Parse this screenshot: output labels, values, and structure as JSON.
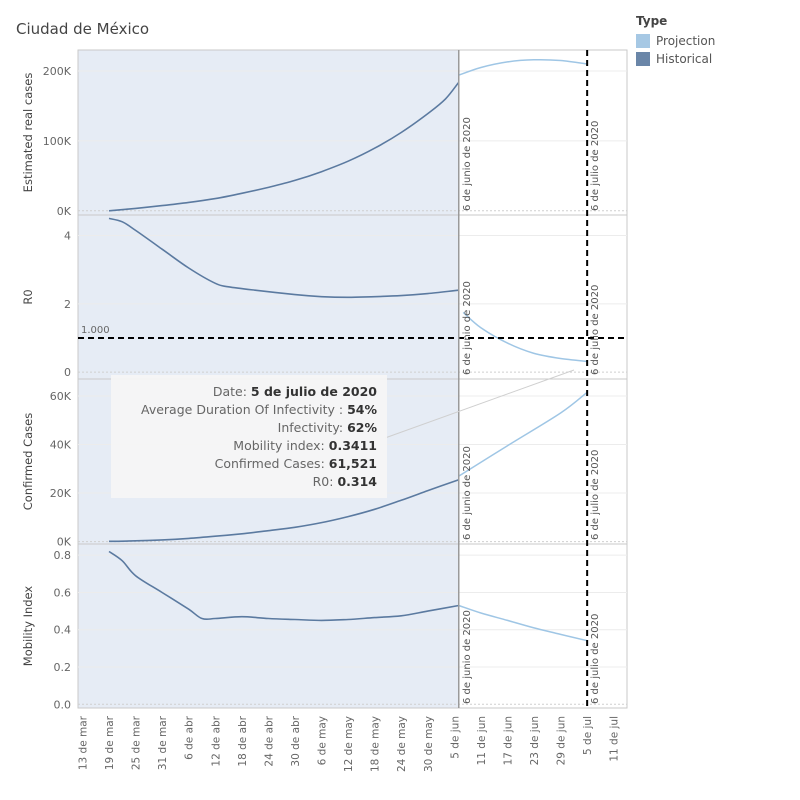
{
  "title": "Ciudad de México",
  "legend": {
    "title": "Type",
    "items": [
      {
        "label": "Projection",
        "color": "#a6c8e4"
      },
      {
        "label": "Historical",
        "color": "#6a86a8"
      }
    ]
  },
  "colors": {
    "historical_line": "#5b7aa0",
    "projection_line": "#9fc6e5",
    "historical_band": "#e6ecf5",
    "ref_line": "#000000",
    "border": "#c9c9c9"
  },
  "reference_lines": {
    "current_date": "2020-06-06",
    "current_label": "6 de junio de 2020",
    "selected_date": "2020-07-05",
    "selected_label": "6 de julio de 2020",
    "r0_threshold": 1.0,
    "r0_threshold_label": "1.000"
  },
  "x_axis": {
    "domain": [
      "2020-03-12",
      "2020-07-14"
    ],
    "ticks": [
      {
        "date": "2020-03-13",
        "label": "13 de mar"
      },
      {
        "date": "2020-03-19",
        "label": "19 de mar"
      },
      {
        "date": "2020-03-25",
        "label": "25 de mar"
      },
      {
        "date": "2020-03-31",
        "label": "31 de mar"
      },
      {
        "date": "2020-04-06",
        "label": "6 de abr"
      },
      {
        "date": "2020-04-12",
        "label": "12 de abr"
      },
      {
        "date": "2020-04-18",
        "label": "18 de abr"
      },
      {
        "date": "2020-04-24",
        "label": "24 de abr"
      },
      {
        "date": "2020-04-30",
        "label": "30 de abr"
      },
      {
        "date": "2020-05-06",
        "label": "6 de may"
      },
      {
        "date": "2020-05-12",
        "label": "12 de may"
      },
      {
        "date": "2020-05-18",
        "label": "18 de may"
      },
      {
        "date": "2020-05-24",
        "label": "24 de may"
      },
      {
        "date": "2020-05-30",
        "label": "30 de may"
      },
      {
        "date": "2020-06-05",
        "label": "5 de jun"
      },
      {
        "date": "2020-06-11",
        "label": "11 de jun"
      },
      {
        "date": "2020-06-17",
        "label": "17 de jun"
      },
      {
        "date": "2020-06-23",
        "label": "23 de jun"
      },
      {
        "date": "2020-06-29",
        "label": "29 de jun"
      },
      {
        "date": "2020-07-05",
        "label": "5 de jul"
      },
      {
        "date": "2020-07-11",
        "label": "11 de jul"
      }
    ]
  },
  "tooltip": {
    "rows": [
      {
        "label": "Date: ",
        "value": "5 de julio de 2020"
      },
      {
        "label": "Average Duration Of Infectivity : ",
        "value": "54%"
      },
      {
        "label": "Infectivity: ",
        "value": "62%"
      },
      {
        "label": "Mobility index: ",
        "value": "0.3411"
      },
      {
        "label": "Confirmed Cases: ",
        "value": "61,521"
      },
      {
        "label": "R0: ",
        "value": "0.314"
      }
    ]
  },
  "chart_data": [
    {
      "type": "line",
      "ylabel": "Estimated real cases",
      "ylim": [
        -6000,
        230000
      ],
      "yticks": [
        {
          "value": 0,
          "label": "0K"
        },
        {
          "value": 100000,
          "label": "100K"
        },
        {
          "value": 200000,
          "label": "200K"
        }
      ],
      "series": [
        {
          "name": "Historical",
          "x": [
            "2020-03-19",
            "2020-03-25",
            "2020-03-31",
            "2020-04-06",
            "2020-04-12",
            "2020-04-18",
            "2020-04-24",
            "2020-04-30",
            "2020-05-06",
            "2020-05-12",
            "2020-05-18",
            "2020-05-24",
            "2020-05-30",
            "2020-06-03",
            "2020-06-06"
          ],
          "y": [
            0,
            3500,
            7500,
            12000,
            17500,
            25000,
            33500,
            43500,
            56000,
            71000,
            89500,
            112000,
            139000,
            160000,
            184000
          ]
        },
        {
          "name": "Projection",
          "x": [
            "2020-06-06",
            "2020-06-11",
            "2020-06-17",
            "2020-06-23",
            "2020-06-29",
            "2020-07-05"
          ],
          "y": [
            194000,
            205000,
            213000,
            216000,
            215000,
            210000
          ]
        }
      ]
    },
    {
      "type": "line",
      "ylabel": "R0",
      "ylim": [
        -0.2,
        4.6
      ],
      "yticks": [
        {
          "value": 0,
          "label": "0"
        },
        {
          "value": 2,
          "label": "2"
        },
        {
          "value": 4,
          "label": "4"
        }
      ],
      "series": [
        {
          "name": "Historical",
          "x": [
            "2020-03-19",
            "2020-03-22",
            "2020-03-25",
            "2020-03-31",
            "2020-04-06",
            "2020-04-12",
            "2020-04-15",
            "2020-04-21",
            "2020-04-30",
            "2020-05-06",
            "2020-05-12",
            "2020-05-18",
            "2020-05-24",
            "2020-05-30",
            "2020-06-06"
          ],
          "y": [
            4.5,
            4.4,
            4.15,
            3.6,
            3.05,
            2.6,
            2.5,
            2.4,
            2.27,
            2.21,
            2.19,
            2.21,
            2.24,
            2.3,
            2.4
          ]
        },
        {
          "name": "Projection",
          "x": [
            "2020-06-07",
            "2020-06-11",
            "2020-06-17",
            "2020-06-23",
            "2020-06-29",
            "2020-07-05"
          ],
          "y": [
            1.75,
            1.3,
            0.85,
            0.55,
            0.4,
            0.314
          ]
        }
      ]
    },
    {
      "type": "line",
      "ylabel": "Confirmed Cases",
      "ylim": [
        -1000,
        67000
      ],
      "yticks": [
        {
          "value": 0,
          "label": "0K"
        },
        {
          "value": 20000,
          "label": "20K"
        },
        {
          "value": 40000,
          "label": "40K"
        },
        {
          "value": 60000,
          "label": "60K"
        }
      ],
      "series": [
        {
          "name": "Historical",
          "x": [
            "2020-03-19",
            "2020-03-25",
            "2020-03-31",
            "2020-04-06",
            "2020-04-12",
            "2020-04-18",
            "2020-04-24",
            "2020-04-30",
            "2020-05-06",
            "2020-05-12",
            "2020-05-18",
            "2020-05-24",
            "2020-05-30",
            "2020-06-06"
          ],
          "y": [
            100,
            300,
            700,
            1300,
            2200,
            3200,
            4500,
            5900,
            7800,
            10300,
            13300,
            17000,
            21000,
            25500
          ]
        },
        {
          "name": "Projection",
          "x": [
            "2020-06-06",
            "2020-06-17",
            "2020-06-29",
            "2020-07-05"
          ],
          "y": [
            27000,
            39500,
            53000,
            61521
          ]
        }
      ]
    },
    {
      "type": "line",
      "ylabel": "Mobility Index",
      "ylim": [
        -0.02,
        0.86
      ],
      "yticks": [
        {
          "value": 0,
          "label": "0.0"
        },
        {
          "value": 0.2,
          "label": "0.2"
        },
        {
          "value": 0.4,
          "label": "0.4"
        },
        {
          "value": 0.6,
          "label": "0.6"
        },
        {
          "value": 0.8,
          "label": "0.8"
        }
      ],
      "series": [
        {
          "name": "Historical",
          "x": [
            "2020-03-19",
            "2020-03-22",
            "2020-03-25",
            "2020-03-31",
            "2020-04-06",
            "2020-04-09",
            "2020-04-12",
            "2020-04-18",
            "2020-04-24",
            "2020-04-30",
            "2020-05-06",
            "2020-05-12",
            "2020-05-18",
            "2020-05-24",
            "2020-05-30",
            "2020-06-06"
          ],
          "y": [
            0.82,
            0.77,
            0.69,
            0.6,
            0.51,
            0.46,
            0.46,
            0.47,
            0.46,
            0.455,
            0.45,
            0.455,
            0.465,
            0.475,
            0.5,
            0.53
          ]
        },
        {
          "name": "Projection",
          "x": [
            "2020-06-06",
            "2020-06-11",
            "2020-06-17",
            "2020-06-23",
            "2020-06-29",
            "2020-07-05"
          ],
          "y": [
            0.53,
            0.49,
            0.45,
            0.41,
            0.375,
            0.3411
          ]
        }
      ]
    }
  ]
}
